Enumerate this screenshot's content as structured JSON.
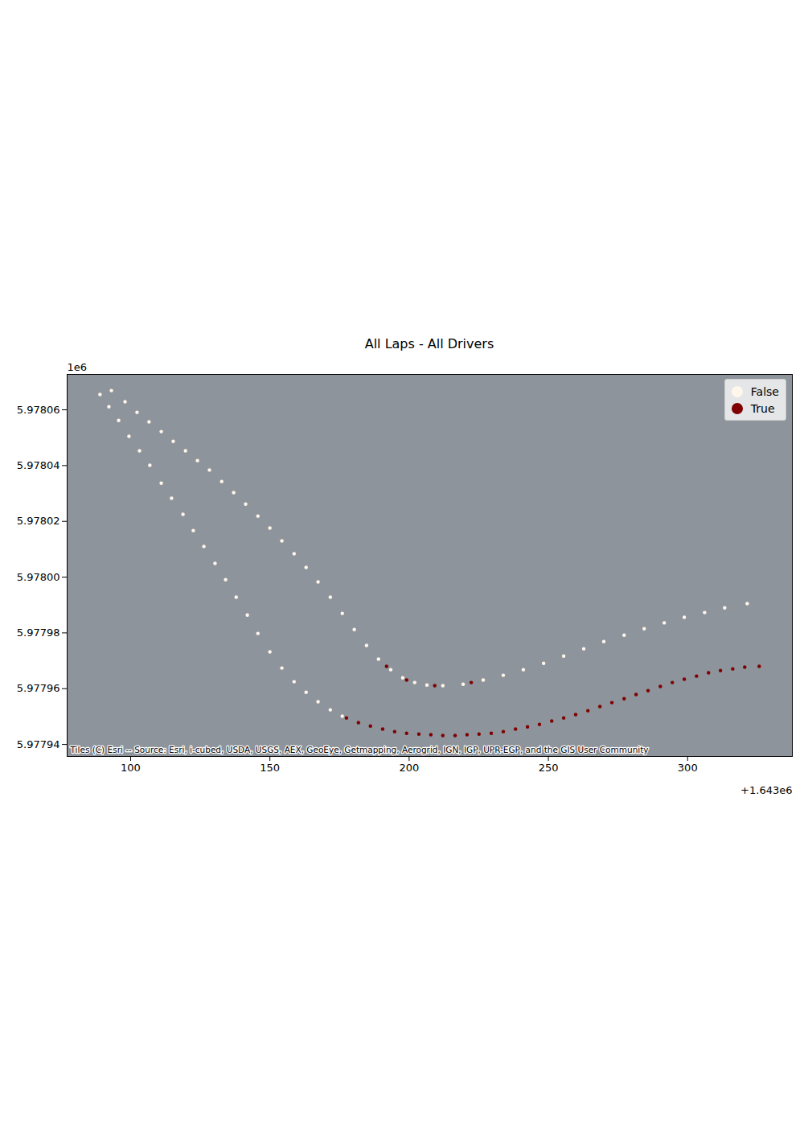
{
  "chart_data": {
    "type": "scatter",
    "title": "All Laps - All Drivers",
    "xlim": [
      1643077.2,
      1643337.6
    ],
    "ylim": [
      5977935.7,
      5978072.7
    ],
    "xticks": [
      {
        "value": 1643100,
        "label": "100"
      },
      {
        "value": 1643150,
        "label": "150"
      },
      {
        "value": 1643200,
        "label": "200"
      },
      {
        "value": 1643250,
        "label": "250"
      },
      {
        "value": 1643300,
        "label": "300"
      }
    ],
    "yticks": [
      {
        "value": 5977940,
        "label": "5.97794"
      },
      {
        "value": 5977960,
        "label": "5.97796"
      },
      {
        "value": 5977980,
        "label": "5.97798"
      },
      {
        "value": 5978000,
        "label": "5.97800"
      },
      {
        "value": 5978020,
        "label": "5.97802"
      },
      {
        "value": 5978040,
        "label": "5.97804"
      },
      {
        "value": 5978060,
        "label": "5.97806"
      }
    ],
    "grid": false,
    "legend": "upper right",
    "marker": "o",
    "annotations": [
      {
        "text": "1e6",
        "axis": "y"
      },
      {
        "text": "+1.643e6",
        "axis": "x"
      },
      {
        "text": "Tiles (C) Esri -- Source: Esri, i-cubed, USDA, USGS, AEX, GeoEye, Getmapping, Aerogrid, IGN, IGP, UPR-EGP, and the GIS User Community"
      }
    ],
    "series": [
      {
        "name": "False",
        "color": "#fff7ec",
        "x": [
          1643089.0,
          1643092.2,
          1643095.7,
          1643099.4,
          1643103.2,
          1643106.9,
          1643111.0,
          1643114.7,
          1643118.8,
          1643122.5,
          1643126.3,
          1643130.3,
          1643134.1,
          1643137.9,
          1643141.9,
          1643145.7,
          1643150.0,
          1643154.3,
          1643158.7,
          1643163.0,
          1643167.3,
          1643171.7,
          1643176.0,
          1643093.1,
          1643098.0,
          1643102.3,
          1643106.6,
          1643111.0,
          1643115.3,
          1643119.7,
          1643124.0,
          1643128.3,
          1643132.7,
          1643137.0,
          1643141.3,
          1643145.7,
          1643150.0,
          1643154.3,
          1643158.7,
          1643163.0,
          1643167.3,
          1643171.7,
          1643176.0,
          1643180.3,
          1643184.7,
          1643189.0,
          1643193.4,
          1643197.7,
          1643202.0,
          1643206.4,
          1643212.1,
          1643219.4,
          1643226.6,
          1643233.8,
          1643241.0,
          1643248.3,
          1643255.5,
          1643262.7,
          1643269.9,
          1643277.2,
          1643284.4,
          1643291.6,
          1643298.8,
          1643306.1,
          1643313.3,
          1643321.4
        ],
        "y": [
          5978065.5,
          5978061.1,
          5978056.2,
          5978050.5,
          5978045.3,
          5978040.1,
          5978033.7,
          5978028.3,
          5978022.5,
          5978016.7,
          5978011.0,
          5978004.9,
          5977999.1,
          5977992.8,
          5977986.4,
          5977979.8,
          5977973.2,
          5977967.4,
          5977962.5,
          5977958.7,
          5977955.3,
          5977952.4,
          5977950.1,
          5978066.9,
          5978062.9,
          5978059.1,
          5978055.7,
          5978052.2,
          5978048.7,
          5978045.3,
          5978041.8,
          5978038.4,
          5978034.3,
          5978030.3,
          5978026.2,
          5978021.9,
          5978017.6,
          5978013.0,
          5978008.4,
          5978003.5,
          5977998.3,
          5977992.8,
          5977987.0,
          5977981.2,
          5977975.5,
          5977970.6,
          5977966.8,
          5977963.9,
          5977962.2,
          5977961.3,
          5977961.1,
          5977961.6,
          5977963.1,
          5977964.8,
          5977966.8,
          5977969.1,
          5977971.7,
          5977974.3,
          5977976.9,
          5977979.2,
          5977981.5,
          5977983.6,
          5977985.6,
          5977987.3,
          5977989.0,
          5977990.5
        ]
      },
      {
        "name": "True",
        "color": "#7f0000",
        "x": [
          1643177.5,
          1643181.8,
          1643186.1,
          1643190.5,
          1643194.8,
          1643199.1,
          1643203.5,
          1643207.8,
          1643212.1,
          1643216.5,
          1643220.8,
          1643225.1,
          1643229.5,
          1643233.8,
          1643238.2,
          1643242.5,
          1643246.8,
          1643251.2,
          1643255.5,
          1643259.8,
          1643264.2,
          1643268.5,
          1643272.8,
          1643277.2,
          1643281.5,
          1643285.8,
          1643290.2,
          1643294.5,
          1643298.8,
          1643303.2,
          1643307.5,
          1643311.8,
          1643316.2,
          1643320.5,
          1643325.7,
          1643191.9,
          1643199.1,
          1643209.2,
          1643222.3
        ],
        "y": [
          5977949.5,
          5977947.8,
          5977946.6,
          5977945.5,
          5977944.6,
          5977944.0,
          5977943.7,
          5977943.5,
          5977943.2,
          5977943.2,
          5977943.5,
          5977943.7,
          5977944.0,
          5977944.6,
          5977945.5,
          5977946.3,
          5977947.2,
          5977948.4,
          5977949.5,
          5977950.7,
          5977952.1,
          5977953.6,
          5977955.0,
          5977956.4,
          5977957.9,
          5977959.3,
          5977960.8,
          5977962.2,
          5977963.4,
          5977964.5,
          5977965.7,
          5977966.5,
          5977967.1,
          5977967.7,
          5977968.0,
          5977968.0,
          5977963.1,
          5977961.1,
          5977962.2
        ]
      }
    ]
  }
}
